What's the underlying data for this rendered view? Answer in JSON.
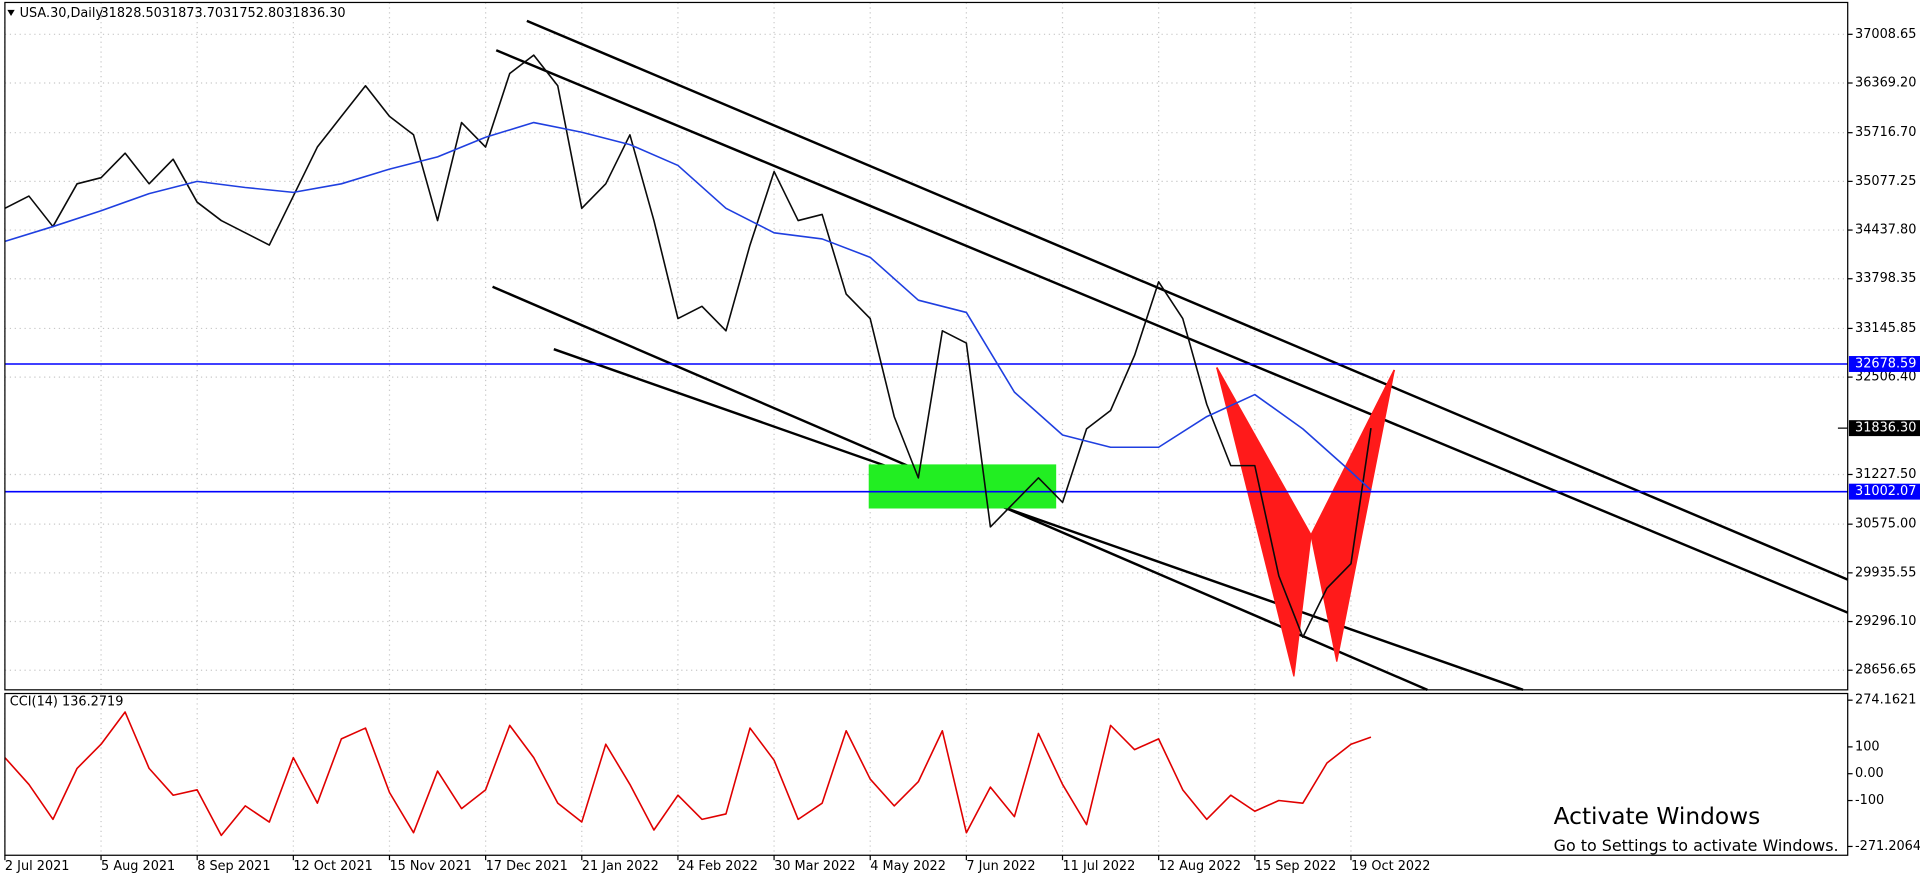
{
  "chart_data": [
    {
      "type": "line",
      "title": "USA.30,Daily",
      "ohlc": [
        "31828.50",
        "31873.70",
        "31752.80",
        "31836.30"
      ],
      "xlim": [
        0,
        460
      ],
      "xticks": [
        {
          "value": 0,
          "label": "2 Jul 2021"
        },
        {
          "value": 24,
          "label": "5 Aug 2021"
        },
        {
          "value": 48,
          "label": "8 Sep 2021"
        },
        {
          "value": 72,
          "label": "12 Oct 2021"
        },
        {
          "value": 96,
          "label": "15 Nov 2021"
        },
        {
          "value": 120,
          "label": "17 Dec 2021"
        },
        {
          "value": 144,
          "label": "21 Jan 2022"
        },
        {
          "value": 168,
          "label": "24 Feb 2022"
        },
        {
          "value": 192,
          "label": "30 Mar 2022"
        },
        {
          "value": 216,
          "label": "4 May 2022"
        },
        {
          "value": 240,
          "label": "7 Jun 2022"
        },
        {
          "value": 264,
          "label": "11 Jul 2022"
        },
        {
          "value": 288,
          "label": "12 Aug 2022"
        },
        {
          "value": 312,
          "label": "15 Sep 2022"
        },
        {
          "value": 336,
          "label": "19 Oct 2022"
        }
      ],
      "ylim": [
        28399,
        37427
      ],
      "yticks": [
        {
          "value": 37008.65,
          "label": "37008.65"
        },
        {
          "value": 36369.2,
          "label": "36369.20"
        },
        {
          "value": 35716.7,
          "label": "35716.70"
        },
        {
          "value": 35077.25,
          "label": "35077.25"
        },
        {
          "value": 34437.8,
          "label": "34437.80"
        },
        {
          "value": 33798.35,
          "label": "33798.35"
        },
        {
          "value": 33145.85,
          "label": "33145.85"
        },
        {
          "value": 32506.4,
          "label": "32506.40"
        },
        {
          "value": 31227.5,
          "label": "31227.50"
        },
        {
          "value": 30575,
          "label": "30575.00"
        },
        {
          "value": 29935.55,
          "label": "29935.55"
        },
        {
          "value": 29296.1,
          "label": "29296.10"
        },
        {
          "value": 28656.65,
          "label": "28656.65"
        }
      ],
      "grid": true,
      "series": [
        {
          "color": "#0a0a0a",
          "x": [
            0,
            6,
            12,
            18,
            24,
            30,
            36,
            42,
            48,
            54,
            60,
            66,
            72,
            78,
            84,
            90,
            96,
            102,
            108,
            114,
            120,
            126,
            132,
            138,
            144,
            150,
            156,
            162,
            168,
            174,
            180,
            186,
            192,
            198,
            204,
            210,
            216,
            222,
            228,
            234,
            240,
            246,
            252,
            258,
            264,
            270,
            276,
            282,
            288,
            294,
            300,
            306,
            312,
            318,
            324,
            330,
            336,
            341
          ],
          "values": [
            34724,
            34885,
            34483,
            35046,
            35126,
            35448,
            35046,
            35368,
            34804,
            34563,
            34402,
            34241,
            34885,
            35528,
            35931,
            36333,
            35931,
            35689,
            34563,
            35850,
            35528,
            36494,
            36735,
            36333,
            34724,
            35046,
            35689,
            34563,
            33275,
            33436,
            33114,
            34241,
            35207,
            34563,
            34643,
            33597,
            33275,
            31988,
            31183,
            33114,
            32953,
            30539,
            30861,
            31183,
            30861,
            31827,
            32068,
            32793,
            33758,
            33275,
            32149,
            31344,
            31344,
            29896,
            29091,
            29735,
            30057,
            31836.3
          ]
        },
        {
          "color": "#1f3fe0",
          "x": [
            0,
            12,
            24,
            36,
            48,
            60,
            72,
            84,
            96,
            108,
            120,
            132,
            144,
            156,
            168,
            180,
            192,
            204,
            216,
            228,
            240,
            252,
            264,
            276,
            288,
            300,
            312,
            324,
            336,
            341
          ],
          "values": [
            34289,
            34483,
            34692,
            34917,
            35078,
            34997,
            34933,
            35046,
            35239,
            35400,
            35657,
            35850,
            35722,
            35561,
            35287,
            34724,
            34402,
            34321,
            34080,
            33517,
            33356,
            32310,
            31747,
            31586,
            31586,
            31988,
            32278,
            31827,
            31264,
            31022
          ]
        }
      ],
      "hlines": [
        {
          "value": 32678.59,
          "color": "#0000ff"
        },
        {
          "value": 31002.07,
          "color": "#0000ff"
        }
      ],
      "last_price": {
        "value": 31836.3,
        "label": "31836.30"
      }
    },
    {
      "type": "line",
      "title": "CCI(14) 136.2719",
      "xlim": [
        0,
        460
      ],
      "ylim": [
        -304,
        299
      ],
      "yticks": [
        274.1621,
        100,
        {
          "value": 0,
          "label": "0.00"
        },
        -100,
        -271.2064
      ],
      "series": [
        {
          "color": "#e00000",
          "x": [
            0,
            6,
            12,
            18,
            24,
            30,
            36,
            42,
            48,
            54,
            60,
            66,
            72,
            78,
            84,
            90,
            96,
            102,
            108,
            114,
            120,
            126,
            132,
            138,
            144,
            150,
            156,
            162,
            168,
            174,
            180,
            186,
            192,
            198,
            204,
            210,
            216,
            222,
            228,
            234,
            240,
            246,
            252,
            258,
            264,
            270,
            276,
            282,
            288,
            294,
            300,
            306,
            312,
            318,
            324,
            330,
            336,
            341
          ],
          "values": [
            60,
            -40,
            -170,
            20,
            110,
            230,
            20,
            -80,
            -60,
            -230,
            -120,
            -180,
            60,
            -110,
            130,
            170,
            -70,
            -220,
            10,
            -130,
            -60,
            180,
            60,
            -110,
            -180,
            110,
            -40,
            -210,
            -80,
            -170,
            -150,
            170,
            50,
            -170,
            -110,
            160,
            -20,
            -120,
            -30,
            160,
            -220,
            -50,
            -160,
            150,
            -40,
            -190,
            180,
            90,
            130,
            -60,
            -170,
            -80,
            -140,
            -100,
            -110,
            40,
            110,
            136.2719
          ]
        }
      ]
    }
  ],
  "watermark": {
    "title": "Activate Windows",
    "subtitle": "Go to Settings to activate Windows."
  }
}
